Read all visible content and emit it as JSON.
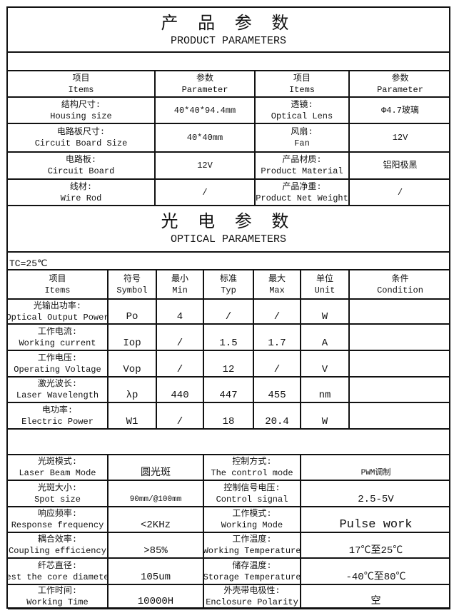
{
  "product_section": {
    "title_cn": "产 品 参 数",
    "title_en": "PRODUCT PARAMETERS",
    "header": [
      [
        "项目",
        "Items"
      ],
      [
        "参数",
        "Parameter"
      ],
      [
        "项目",
        "Items"
      ],
      [
        "参数",
        "Parameter"
      ]
    ],
    "rows": [
      [
        [
          "结构尺寸:",
          "Housing size"
        ],
        [
          "40*40*94.4mm"
        ],
        [
          "透镜:",
          "Optical Lens"
        ],
        [
          "Φ4.7玻璃"
        ]
      ],
      [
        [
          "电路板尺寸:",
          "Circuit Board Size"
        ],
        [
          "40*40mm"
        ],
        [
          "风扇:",
          "Fan"
        ],
        [
          "12V"
        ]
      ],
      [
        [
          "电路板:",
          "Circuit Board"
        ],
        [
          "12V"
        ],
        [
          "产品材质:",
          "Product Material"
        ],
        [
          "铝阳极黑"
        ]
      ],
      [
        [
          "线材:",
          "Wire Rod"
        ],
        [
          "/"
        ],
        [
          "产品净重:",
          "Product Net Weight"
        ],
        [
          "/"
        ]
      ]
    ]
  },
  "optical_section": {
    "title_cn": "光 电 参 数",
    "title_en": "OPTICAL PARAMETERS",
    "condition_note": "TC=25℃",
    "header": [
      [
        "项目",
        "Items"
      ],
      [
        "符号",
        "Symbol"
      ],
      [
        "最小",
        "Min"
      ],
      [
        "标准",
        "Typ"
      ],
      [
        "最大",
        "Max"
      ],
      [
        "单位",
        "Unit"
      ],
      [
        "条件",
        "Condition"
      ]
    ],
    "rows": [
      [
        [
          "光输出功率:",
          "Optical Output Power"
        ],
        [
          "Po"
        ],
        [
          "4"
        ],
        [
          "/"
        ],
        [
          "/"
        ],
        [
          "W"
        ],
        [
          ""
        ]
      ],
      [
        [
          "工作电流:",
          "Working current"
        ],
        [
          "Iop"
        ],
        [
          "/"
        ],
        [
          "1.5"
        ],
        [
          "1.7"
        ],
        [
          "A"
        ],
        [
          ""
        ]
      ],
      [
        [
          "工作电压:",
          "Operating Voltage"
        ],
        [
          "Vop"
        ],
        [
          "/"
        ],
        [
          "12"
        ],
        [
          "/"
        ],
        [
          "V"
        ],
        [
          ""
        ]
      ],
      [
        [
          "激光波长:",
          "Laser Wavelength"
        ],
        [
          "λp"
        ],
        [
          "440"
        ],
        [
          "447"
        ],
        [
          "455"
        ],
        [
          "nm"
        ],
        [
          ""
        ]
      ],
      [
        [
          "电功率:",
          "Electric Power"
        ],
        [
          "W1"
        ],
        [
          "/"
        ],
        [
          "18"
        ],
        [
          "20.4"
        ],
        [
          "W"
        ],
        [
          ""
        ]
      ]
    ]
  },
  "other_section": {
    "rows": [
      [
        [
          "光斑模式:",
          "Laser Beam Mode"
        ],
        [
          "圆光斑"
        ],
        [
          "控制方式:",
          "The control mode"
        ],
        [
          "PWM调制"
        ]
      ],
      [
        [
          "光斑大小:",
          "Spot size"
        ],
        [
          "90mm/@100mm"
        ],
        [
          "控制信号电压:",
          "Control signal"
        ],
        [
          "2.5-5V"
        ]
      ],
      [
        [
          "响应频率:",
          "Response frequency"
        ],
        [
          "<2KHz"
        ],
        [
          "工作模式:",
          "Working Mode"
        ],
        [
          "Pulse work"
        ]
      ],
      [
        [
          "耦合效率:",
          "Coupling efficiency"
        ],
        [
          ">85%"
        ],
        [
          "工作温度:",
          "Working Temperature"
        ],
        [
          "17℃至25℃"
        ]
      ],
      [
        [
          "纤芯直径:",
          "Test the core diameter"
        ],
        [
          "105um"
        ],
        [
          "储存温度:",
          "Storage Temperature"
        ],
        [
          "-40℃至80℃"
        ]
      ],
      [
        [
          "工作时间:",
          "Working Time"
        ],
        [
          "10000H"
        ],
        [
          "外壳带电极性:",
          "Enclosure Polarity"
        ],
        [
          "空"
        ]
      ]
    ]
  }
}
